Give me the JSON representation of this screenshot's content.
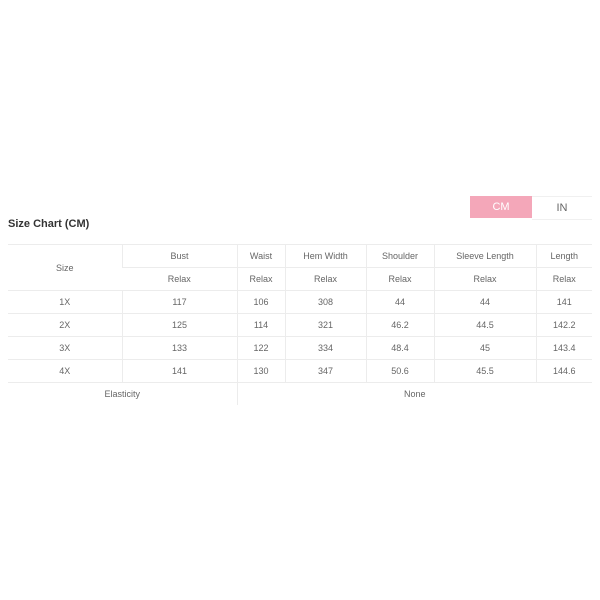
{
  "units_toggle": {
    "options": [
      "CM",
      "IN"
    ],
    "selected": "CM",
    "accent_color": "#f4a7b9"
  },
  "title": "Size Chart (CM)",
  "table": {
    "size_header": "Size",
    "columns": [
      "Bust",
      "Waist",
      "Hem Width",
      "Shoulder",
      "Sleeve Length",
      "Length"
    ],
    "sub_header": [
      "Relax",
      "Relax",
      "Relax",
      "Relax",
      "Relax",
      "Relax"
    ],
    "rows": [
      {
        "size": "1X",
        "values": [
          "117",
          "106",
          "308",
          "44",
          "44",
          "141"
        ]
      },
      {
        "size": "2X",
        "values": [
          "125",
          "114",
          "321",
          "46.2",
          "44.5",
          "142.2"
        ]
      },
      {
        "size": "3X",
        "values": [
          "133",
          "122",
          "334",
          "48.4",
          "45",
          "143.4"
        ]
      },
      {
        "size": "4X",
        "values": [
          "141",
          "130",
          "347",
          "50.6",
          "45.5",
          "144.6"
        ]
      }
    ],
    "elasticity_label": "Elasticity",
    "elasticity_value": "None"
  }
}
